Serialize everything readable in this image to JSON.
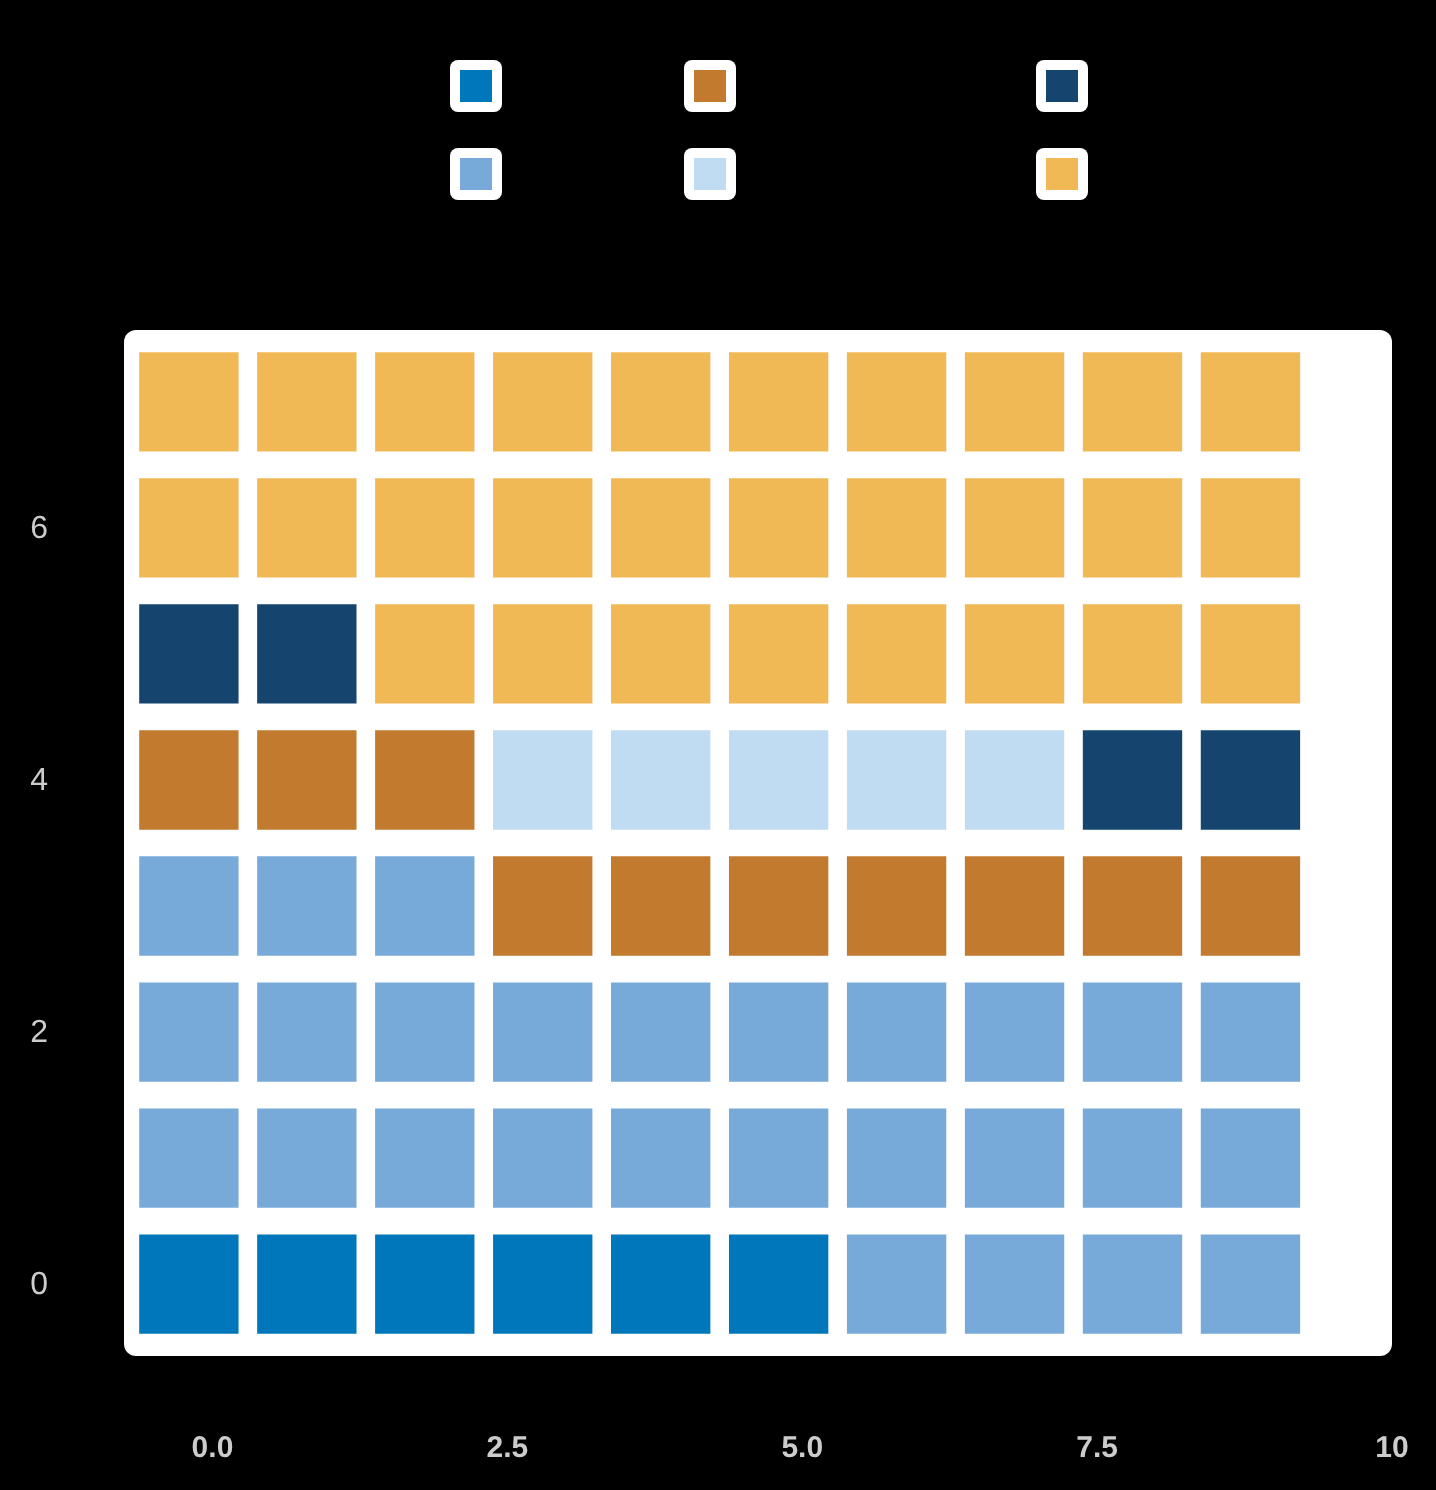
{
  "chart_data": {
    "type": "scatter",
    "marker": "square",
    "grid": false,
    "xlim": [
      -0.75,
      10
    ],
    "ylim": [
      -0.57,
      7.57
    ],
    "xticks": [
      {
        "value": 0,
        "label": "0.0"
      },
      2.5,
      {
        "value": 5,
        "label": "5.0"
      },
      7.5,
      10
    ],
    "yticks": [
      0,
      2,
      4,
      6
    ],
    "series": [
      {
        "color": "#0077bb",
        "x": [
          -0.2,
          0.8,
          1.8,
          2.8,
          3.8,
          4.8
        ],
        "values": [
          0,
          0,
          0,
          0,
          0,
          0
        ]
      },
      {
        "color": "#77aad8",
        "x": [
          5.8,
          6.8,
          7.8,
          8.8,
          -0.2,
          0.8,
          1.8,
          2.8,
          3.8,
          4.8,
          5.8,
          6.8,
          7.8,
          8.8,
          -0.2,
          0.8,
          1.8,
          2.8,
          3.8,
          4.8,
          5.8,
          6.8,
          7.8,
          8.8,
          -0.2,
          0.8,
          1.8
        ],
        "values": [
          0,
          0,
          0,
          0,
          1,
          1,
          1,
          1,
          1,
          1,
          1,
          1,
          1,
          1,
          2,
          2,
          2,
          2,
          2,
          2,
          2,
          2,
          2,
          2,
          3,
          3,
          3
        ]
      },
      {
        "color": "#c17a2e",
        "x": [
          2.8,
          3.8,
          4.8,
          5.8,
          6.8,
          7.8,
          8.8,
          -0.2,
          0.8,
          1.8
        ],
        "values": [
          3,
          3,
          3,
          3,
          3,
          3,
          3,
          4,
          4,
          4
        ]
      },
      {
        "color": "#bfdcf2",
        "x": [
          2.8,
          3.8,
          4.8,
          5.8,
          6.8
        ],
        "values": [
          4,
          4,
          4,
          4,
          4
        ]
      },
      {
        "color": "#15456e",
        "x": [
          7.8,
          8.8,
          -0.2,
          0.8
        ],
        "values": [
          4,
          4,
          5,
          5
        ]
      },
      {
        "color": "#f0b955",
        "x": [
          1.8,
          2.8,
          3.8,
          4.8,
          5.8,
          6.8,
          7.8,
          8.8,
          -0.2,
          0.8,
          1.8,
          2.8,
          3.8,
          4.8,
          5.8,
          6.8,
          7.8,
          8.8,
          -0.2,
          0.8,
          1.8,
          2.8,
          3.8,
          4.8,
          5.8,
          6.8,
          7.8,
          8.8
        ],
        "values": [
          5,
          5,
          5,
          5,
          5,
          5,
          5,
          5,
          6,
          6,
          6,
          6,
          6,
          6,
          6,
          6,
          6,
          6,
          7,
          7,
          7,
          7,
          7,
          7,
          7,
          7,
          7,
          7
        ]
      }
    ]
  }
}
